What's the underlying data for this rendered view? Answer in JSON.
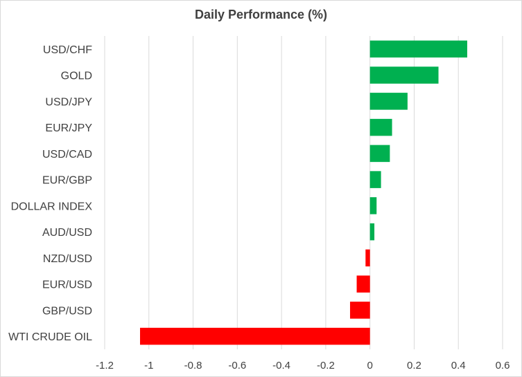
{
  "chart_data": {
    "type": "bar",
    "orientation": "horizontal",
    "title": "Daily Performance (%)",
    "xlabel": "",
    "ylabel": "",
    "xlim": [
      -1.2,
      0.6
    ],
    "x_ticks": [
      "-1.2",
      "-1",
      "-0.8",
      "-0.6",
      "-0.4",
      "-0.2",
      "0",
      "0.2",
      "0.4",
      "0.6"
    ],
    "x_tick_values": [
      -1.2,
      -1.0,
      -0.8,
      -0.6,
      -0.4,
      -0.2,
      0,
      0.2,
      0.4,
      0.6
    ],
    "grid": "vertical",
    "legend": "none",
    "categories": [
      "USD/CHF",
      "GOLD",
      "USD/JPY",
      "EUR/JPY",
      "USD/CAD",
      "EUR/GBP",
      "DOLLAR INDEX",
      "AUD/USD",
      "NZD/USD",
      "EUR/USD",
      "GBP/USD",
      "WTI CRUDE OIL"
    ],
    "values": [
      0.44,
      0.31,
      0.17,
      0.1,
      0.09,
      0.05,
      0.03,
      0.02,
      -0.02,
      -0.06,
      -0.09,
      -1.04
    ],
    "colors": {
      "positive": "#00b050",
      "negative": "#ff0000",
      "grid": "#d9d9d9",
      "text": "#404040"
    }
  }
}
